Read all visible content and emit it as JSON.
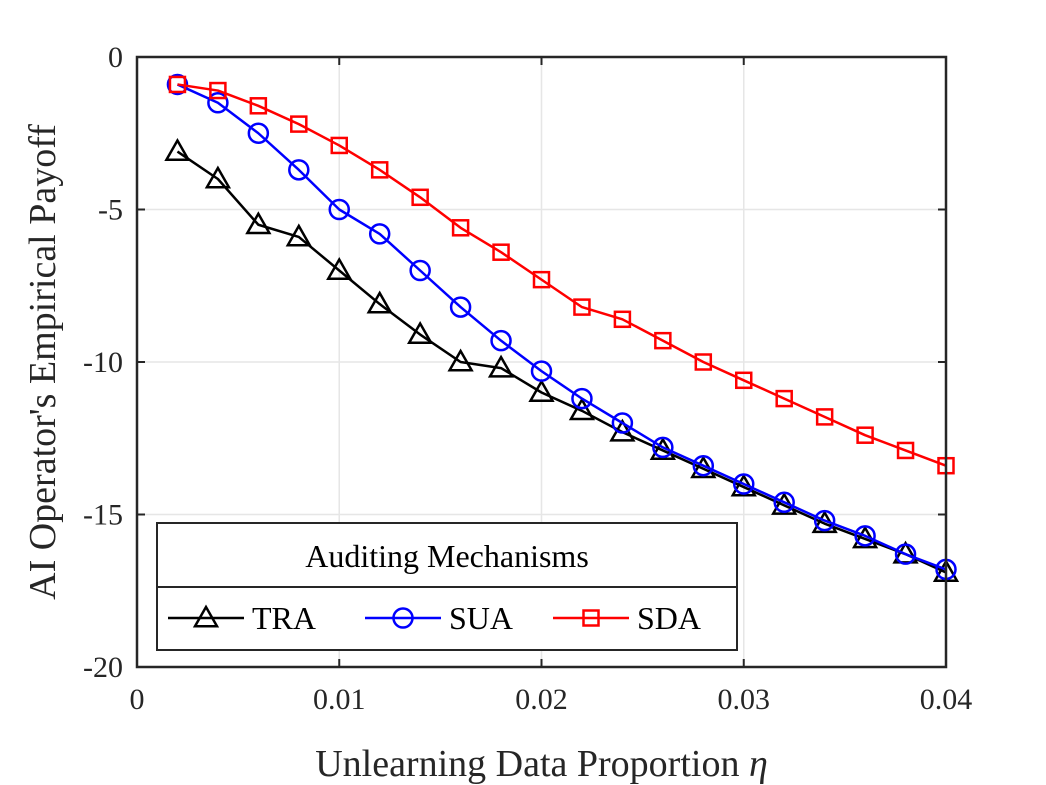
{
  "chart_data": {
    "type": "line",
    "title": "",
    "xlabel": "Unlearning Data Proportion",
    "xlabel_symbol": "η",
    "ylabel": "AI Operator's Empirical Payoff",
    "xlim": [
      0,
      0.04
    ],
    "ylim": [
      -20,
      0
    ],
    "xticks": [
      0,
      0.01,
      0.02,
      0.03,
      0.04
    ],
    "xtick_labels": [
      "0",
      "0.01",
      "0.02",
      "0.03",
      "0.04"
    ],
    "yticks": [
      -20,
      -15,
      -10,
      -5,
      0
    ],
    "ytick_labels": [
      "-20",
      "-15",
      "-10",
      "-5",
      "0"
    ],
    "grid": true,
    "legend": {
      "title": "Auditing Mechanisms",
      "position": "bottom-left",
      "orientation": "horizontal"
    },
    "x": [
      0.002,
      0.004,
      0.006,
      0.008,
      0.01,
      0.012,
      0.014,
      0.016,
      0.018,
      0.02,
      0.022,
      0.024,
      0.026,
      0.028,
      0.03,
      0.032,
      0.034,
      0.036,
      0.038,
      0.04
    ],
    "series": [
      {
        "name": "TRA",
        "color": "#000000",
        "marker": "triangle",
        "values": [
          -3.1,
          -4.0,
          -5.5,
          -5.9,
          -7.0,
          -8.1,
          -9.1,
          -10.0,
          -10.2,
          -11.0,
          -11.6,
          -12.3,
          -12.9,
          -13.5,
          -14.1,
          -14.7,
          -15.3,
          -15.8,
          -16.3,
          -16.9
        ]
      },
      {
        "name": "SUA",
        "color": "#0000ff",
        "marker": "circle",
        "values": [
          -0.9,
          -1.5,
          -2.5,
          -3.7,
          -5.0,
          -5.8,
          -7.0,
          -8.2,
          -9.3,
          -10.3,
          -11.2,
          -12.0,
          -12.8,
          -13.4,
          -14.0,
          -14.6,
          -15.2,
          -15.7,
          -16.3,
          -16.8
        ]
      },
      {
        "name": "SDA",
        "color": "#ff0000",
        "marker": "square",
        "values": [
          -0.9,
          -1.1,
          -1.6,
          -2.2,
          -2.9,
          -3.7,
          -4.6,
          -5.6,
          -6.4,
          -7.3,
          -8.2,
          -8.6,
          -9.3,
          -10.0,
          -10.6,
          -11.2,
          -11.8,
          -12.4,
          -12.9,
          -13.4
        ]
      }
    ]
  }
}
